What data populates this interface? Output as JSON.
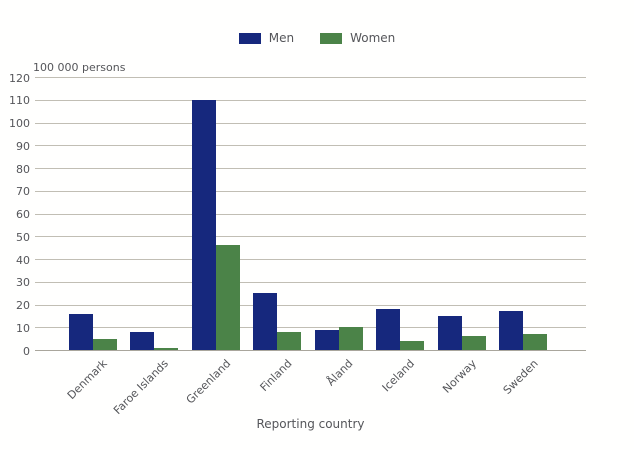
{
  "colors": {
    "men": "#16287d",
    "women": "#4b8348",
    "grid": "#c1beb4",
    "axis": "#a9a69c",
    "text": "#55565a"
  },
  "legend": {
    "men_label": "Men",
    "women_label": "Women"
  },
  "chart_data": {
    "type": "bar",
    "title": "",
    "unit_label": "100 000 persons",
    "xlabel": "Reporting country",
    "ylabel": "100 000 persons",
    "ylim": [
      0,
      120
    ],
    "ytick_step": 10,
    "grid": true,
    "legend_position": "top",
    "categories": [
      "Denmark",
      "Faroe Islands",
      "Greenland",
      "Finland",
      "Åland",
      "Iceland",
      "Norway",
      "Sweden"
    ],
    "series": [
      {
        "name": "Men",
        "color": "#16287d",
        "values": [
          16,
          8,
          110,
          25,
          9,
          18,
          15,
          17
        ]
      },
      {
        "name": "Women",
        "color": "#4b8348",
        "values": [
          5,
          1,
          46,
          8,
          10,
          4,
          6,
          7
        ]
      }
    ]
  }
}
